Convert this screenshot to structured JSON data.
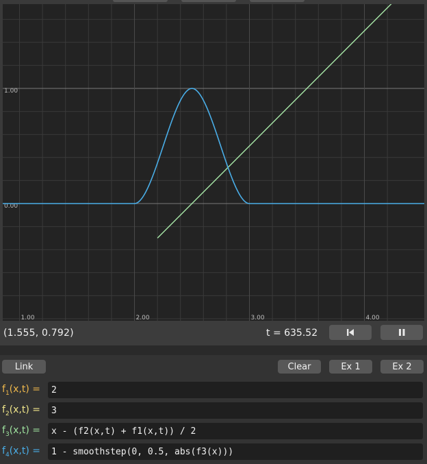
{
  "graph": {
    "x_ticks": [
      "1.00",
      "2.00",
      "3.00",
      "4.00"
    ],
    "y_ticks": [
      "1.00",
      "0.00"
    ],
    "colors": {
      "background": "#232323",
      "grid": "#3a3a3a",
      "axis": "#7a7a7a",
      "curve_f4": "#4aaee8",
      "curve_f3": "#a8e8a8"
    }
  },
  "status": {
    "coordinates": "(1.555, 0.792)",
    "time": "t = 635.52"
  },
  "controls": {
    "rewind_icon": "skip-back-icon",
    "pause_icon": "pause-icon"
  },
  "toolbar": {
    "link_label": "Link",
    "clear_label": "Clear",
    "ex1_label": "Ex 1",
    "ex2_label": "Ex 2"
  },
  "functions": [
    {
      "name": "f",
      "index": "1",
      "args": "(x,t)",
      "eq": "=",
      "expr": "2",
      "color": "#f0b94c"
    },
    {
      "name": "f",
      "index": "2",
      "args": "(x,t)",
      "eq": "=",
      "expr": "3",
      "color": "#f0e68a"
    },
    {
      "name": "f",
      "index": "3",
      "args": "(x,t)",
      "eq": "=",
      "expr": "x - (f2(x,t) + f1(x,t)) / 2",
      "color": "#9fe39f"
    },
    {
      "name": "f",
      "index": "4",
      "args": "(x,t)",
      "eq": "=",
      "expr": "1 - smoothstep(0, 0.5, abs(f3(x)))",
      "color": "#4aaee8"
    }
  ]
}
